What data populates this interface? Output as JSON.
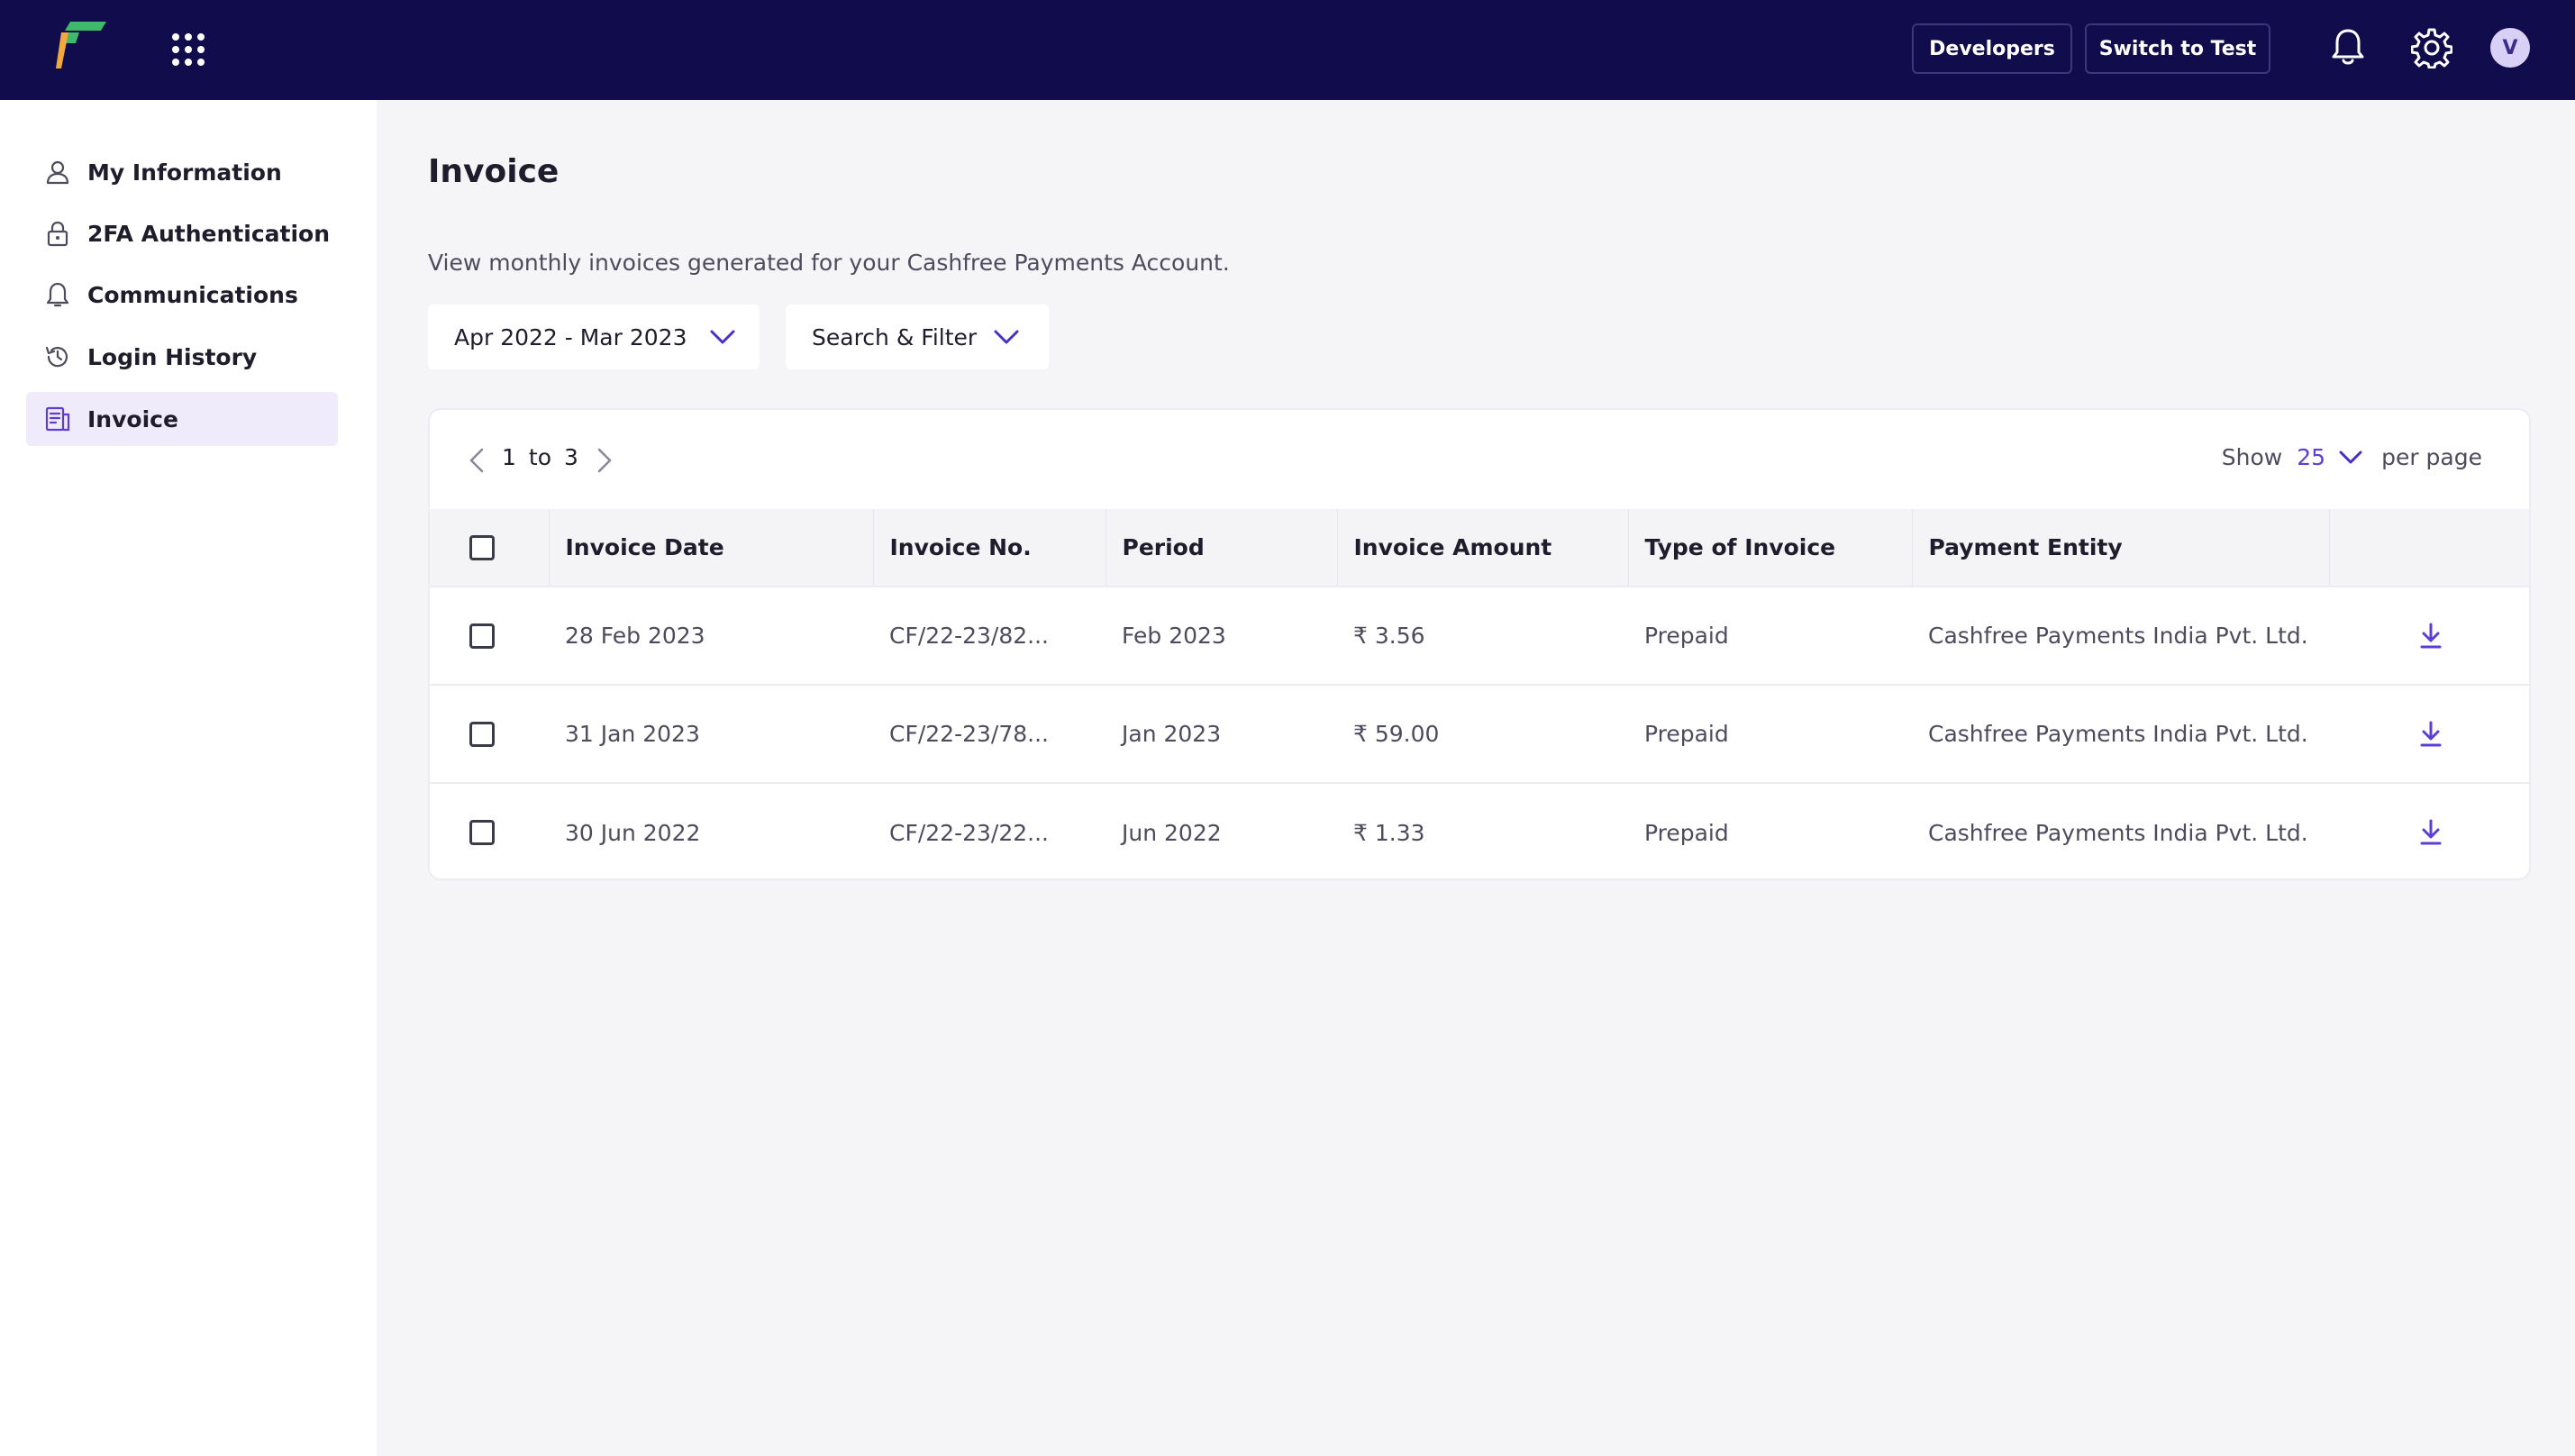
{
  "header": {
    "developers_label": "Developers",
    "switch_label": "Switch to Test",
    "avatar_initial": "V",
    "brand_colors": {
      "bar": "#110c4b",
      "accent": "#5b3fd4"
    }
  },
  "sidebar": {
    "items": [
      {
        "label": "My Information",
        "icon": "user-icon"
      },
      {
        "label": "2FA Authentication",
        "icon": "lock-icon"
      },
      {
        "label": "Communications",
        "icon": "bell-icon"
      },
      {
        "label": "Login History",
        "icon": "history-icon"
      },
      {
        "label": "Invoice",
        "icon": "invoice-icon",
        "active": true
      }
    ]
  },
  "main": {
    "title": "Invoice",
    "subtitle": "View monthly invoices generated for your Cashfree Payments Account.",
    "date_range": "Apr 2022 - Mar 2023",
    "filter_label": "Search & Filter"
  },
  "pager": {
    "from": "1",
    "to_word": "to",
    "to": "3",
    "show_label": "Show",
    "per_page_value": "25",
    "per_page_label": "per page"
  },
  "table": {
    "headers": [
      "Invoice Date",
      "Invoice No.",
      "Period",
      "Invoice Amount",
      "Type of Invoice",
      "Payment Entity"
    ],
    "rows": [
      {
        "date": "28 Feb 2023",
        "no": "CF/22-23/82...",
        "period": "Feb 2023",
        "amount": "₹ 3.56",
        "type": "Prepaid",
        "entity": "Cashfree Payments India Pvt. Ltd."
      },
      {
        "date": "31 Jan 2023",
        "no": "CF/22-23/78...",
        "period": "Jan 2023",
        "amount": "₹ 59.00",
        "type": "Prepaid",
        "entity": "Cashfree Payments India Pvt. Ltd."
      },
      {
        "date": "30 Jun 2022",
        "no": "CF/22-23/22...",
        "period": "Jun 2022",
        "amount": "₹ 1.33",
        "type": "Prepaid",
        "entity": "Cashfree Payments India Pvt. Ltd."
      }
    ]
  }
}
